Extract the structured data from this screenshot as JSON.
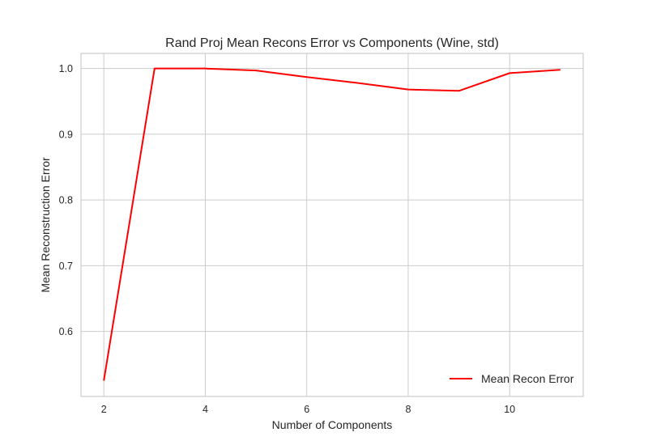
{
  "chart_data": {
    "type": "line",
    "title": "Rand Proj Mean Recons Error vs Components (Wine, std)",
    "xlabel": "Number of Components",
    "ylabel": "Mean Reconstruction Error",
    "xlim": [
      1.55,
      11.45
    ],
    "ylim": [
      0.501,
      1.023
    ],
    "xticks": [
      2,
      4,
      6,
      8,
      10
    ],
    "yticks": [
      0.6,
      0.7,
      0.8,
      0.9,
      1.0
    ],
    "xtick_labels": [
      "2",
      "4",
      "6",
      "8",
      "10"
    ],
    "ytick_labels": [
      "0.6",
      "0.7",
      "0.8",
      "0.9",
      "1.0"
    ],
    "grid": true,
    "legend_position": "lower-right",
    "series": [
      {
        "name": "Mean Recon Error",
        "color": "#ff0000",
        "x": [
          2,
          3,
          4,
          5,
          6,
          7,
          8,
          9,
          10,
          11
        ],
        "y": [
          0.525,
          1.0,
          1.0,
          0.997,
          0.987,
          0.978,
          0.968,
          0.966,
          0.993,
          0.998
        ]
      }
    ]
  }
}
